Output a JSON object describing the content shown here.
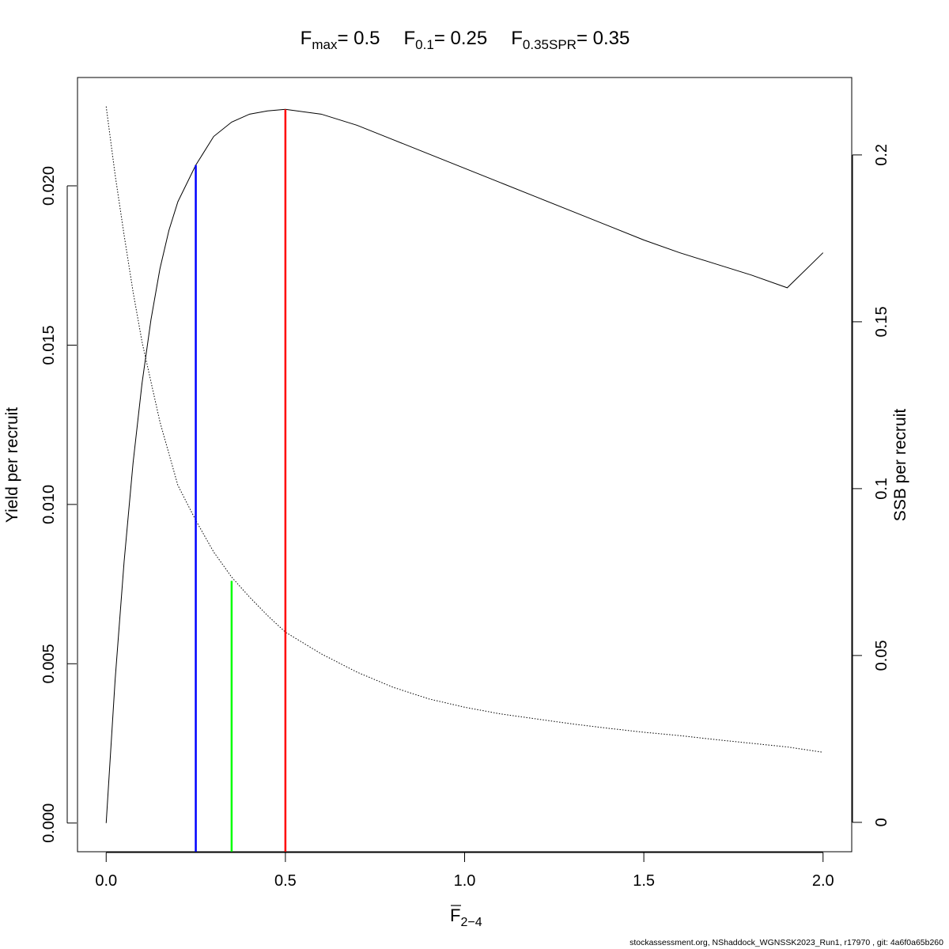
{
  "chart_data": {
    "type": "line",
    "title": {
      "fmax_sym": "F",
      "fmax_sub": "max",
      "fmax_val": "= 0.5",
      "f01_sym": "F",
      "f01_sub": "0.1",
      "f01_val": "= 0.25",
      "fspr_sym": "F",
      "fspr_sub": "0.35SPR",
      "fspr_val": "= 0.35"
    },
    "xlabel": {
      "main": "F",
      "sub": "2−4"
    },
    "ylabel": "Yield per recruit",
    "y2label": "SSB per recruit",
    "xlim": [
      -0.08,
      2.08
    ],
    "ylim": [
      -0.0009,
      0.0234
    ],
    "y2lim": [
      -0.0088,
      0.2232
    ],
    "x_ticks": [
      0,
      0.5,
      1,
      1.5,
      2
    ],
    "x_tick_labels": [
      "0.0",
      "0.5",
      "1.0",
      "1.5",
      "2.0"
    ],
    "y_ticks": [
      0,
      0.005,
      0.01,
      0.015,
      0.02
    ],
    "y_tick_labels": [
      "0.000",
      "0.005",
      "0.010",
      "0.015",
      "0.020"
    ],
    "y2_ticks": [
      0,
      0.05,
      0.1,
      0.15,
      0.2
    ],
    "y2_tick_labels": [
      "0",
      "0.05",
      "0.1",
      "0.15",
      "0.2"
    ],
    "series": [
      {
        "name": "Yield per recruit",
        "axis": "left",
        "style": "solid",
        "color": "#000000",
        "x": [
          0,
          0.025,
          0.05,
          0.075,
          0.1,
          0.125,
          0.15,
          0.175,
          0.2,
          0.25,
          0.3,
          0.35,
          0.4,
          0.45,
          0.5,
          0.6,
          0.7,
          0.8,
          0.9,
          1.0,
          1.1,
          1.2,
          1.3,
          1.4,
          1.5,
          1.6,
          1.7,
          1.8,
          1.9,
          2.0
        ],
        "y": [
          0,
          0.0045,
          0.0082,
          0.0113,
          0.0138,
          0.0158,
          0.0174,
          0.0186,
          0.0195,
          0.02065,
          0.02155,
          0.022,
          0.02225,
          0.02235,
          0.0224,
          0.02225,
          0.0219,
          0.02145,
          0.021,
          0.02055,
          0.0201,
          0.01965,
          0.0192,
          0.01875,
          0.0183,
          0.0179,
          0.01755,
          0.0172,
          0.0168,
          0.0179
        ]
      },
      {
        "name": "SSB per recruit",
        "axis": "right",
        "style": "dotted",
        "color": "#000000",
        "x": [
          0,
          0.025,
          0.05,
          0.075,
          0.1,
          0.15,
          0.2,
          0.25,
          0.3,
          0.35,
          0.4,
          0.45,
          0.5,
          0.6,
          0.7,
          0.8,
          0.9,
          1.0,
          1.1,
          1.2,
          1.3,
          1.4,
          1.5,
          1.6,
          1.7,
          1.8,
          1.9,
          2.0
        ],
        "y": [
          0.2145,
          0.194,
          0.176,
          0.159,
          0.144,
          0.12,
          0.101,
          0.0905,
          0.081,
          0.0735,
          0.0675,
          0.062,
          0.057,
          0.0505,
          0.045,
          0.0405,
          0.037,
          0.0345,
          0.0325,
          0.031,
          0.0295,
          0.0282,
          0.027,
          0.026,
          0.0248,
          0.0237,
          0.0226,
          0.021
        ]
      }
    ],
    "reference_lines": [
      {
        "name": "F0.1",
        "x": 0.25,
        "y_top": 0.02065,
        "color": "#0000ff"
      },
      {
        "name": "F0.35SPR",
        "x": 0.35,
        "y_top": 0.0076,
        "color": "#00ff00"
      },
      {
        "name": "Fmax",
        "x": 0.5,
        "y_top": 0.0224,
        "color": "#ff0000"
      }
    ]
  },
  "footer": "stockassessment.org, NShaddock_WGNSSK2023_Run1, r17970 , git: 4a6f0a65b260"
}
